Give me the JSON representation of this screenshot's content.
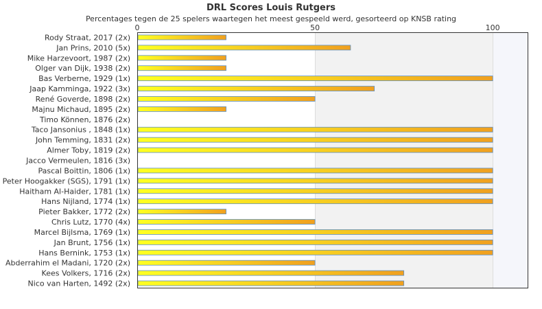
{
  "chart_data": {
    "type": "bar",
    "orientation": "horizontal",
    "title": "DRL Scores Louis Rutgers",
    "subtitle": "Percentages tegen de 25 spelers waartegen het meest gespeeld werd, gesorteerd op KNSB rating",
    "xlim": [
      0,
      110
    ],
    "xticks": [
      "0",
      "50",
      "100"
    ],
    "xtick_values": [
      0,
      50,
      100
    ],
    "categories": [
      "Rody Straat, 2017 (2x)",
      "Jan Prins, 2010 (5x)",
      "Mike Harzevoort, 1987 (2x)",
      "Olger van Dijk, 1938 (2x)",
      "Bas Verberne, 1929 (1x)",
      "Jaap Kamminga, 1922 (3x)",
      "René Goverde, 1898 (2x)",
      "Majnu Michaud, 1895 (2x)",
      "Timo Können, 1876 (2x)",
      "Taco Jansonius , 1848 (1x)",
      "John Temming, 1831 (2x)",
      "Almer Toby, 1819 (2x)",
      "Jacco Vermeulen, 1816 (3x)",
      "Pascal Boittin, 1806 (1x)",
      "Peter Hoogakker (SGS), 1791 (1x)",
      "Haitham Al-Haider, 1781 (1x)",
      "Hans Nijland, 1774 (1x)",
      "Pieter Bakker, 1772 (2x)",
      "Chris Lutz, 1770 (4x)",
      "Marcel Bijlsma, 1769 (1x)",
      "Jan Brunt, 1756 (1x)",
      "Hans Bernink, 1753 (1x)",
      "Abderrahim el Madani, 1720 (2x)",
      "Kees Volkers, 1716 (2x)",
      "Nico van Harten, 1492 (2x)"
    ],
    "values": [
      25,
      60,
      25,
      25,
      100,
      66.7,
      50,
      25,
      0,
      100,
      100,
      100,
      0,
      100,
      100,
      100,
      100,
      25,
      50,
      100,
      100,
      100,
      50,
      75,
      75
    ],
    "grid": true,
    "legend": "none",
    "colors": {
      "bar_start": "#ffff22",
      "bar_end": "#f0a020",
      "bar_stroke": "#5a8fc8",
      "band_light": "#ffffff",
      "band_mid": "#f2f2f2",
      "band_right": "#f5f6fb",
      "axis": "#333333",
      "gridline": "#dddddd"
    }
  }
}
